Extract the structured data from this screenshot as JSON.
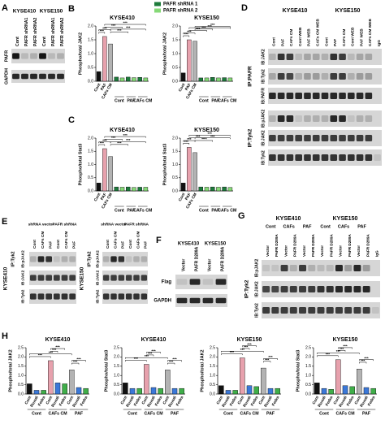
{
  "panel_labels": [
    "A",
    "B",
    "C",
    "D",
    "E",
    "F",
    "G",
    "H"
  ],
  "panel_b_legend": [
    {
      "name": "PAFR shRNA 1",
      "color": "#1e7b3c"
    },
    {
      "name": "PAFR shRNA 2",
      "color": "#86d977"
    }
  ],
  "chart_data": [
    {
      "type": "bar",
      "title": "KYSE410",
      "y_label": "Phospho/total JAK2",
      "categories": [
        "Cont",
        "PAF",
        "CAFs CM",
        null,
        null,
        null,
        null,
        null,
        null
      ],
      "groups": [
        "Cont",
        "PAF",
        "CAFs CM"
      ],
      "values": [
        0.35,
        1.62,
        1.35,
        0.15,
        0.12,
        0.15,
        0.13,
        0.14,
        0.12
      ],
      "colors": [
        "#111111",
        "#e7a1ad",
        "#b3b3b3",
        "#1e7b3c",
        "#86d977",
        "#1e7b3c",
        "#86d977",
        "#1e7b3c",
        "#86d977"
      ],
      "ylim": [
        0,
        2
      ],
      "yticks": [
        {
          "value": 0,
          "label": "0.0"
        },
        0.5,
        {
          "value": 1,
          "label": "1.0"
        },
        1.5,
        {
          "value": 2,
          "label": "2.0"
        }
      ],
      "significance": [
        "***",
        "***",
        "***",
        "***",
        "***",
        "***"
      ]
    },
    {
      "type": "bar",
      "title": "KYSE150",
      "y_label": "Phospho/total JAK2",
      "categories": [
        "Cont",
        "PAF",
        "CAFs CM",
        null,
        null,
        null,
        null,
        null,
        null
      ],
      "groups": [
        "Cont",
        "PAF",
        "CAFs CM"
      ],
      "values": [
        0.3,
        1.5,
        1.45,
        0.12,
        0.12,
        0.14,
        0.12,
        0.13,
        0.12
      ],
      "colors": [
        "#111111",
        "#e7a1ad",
        "#b3b3b3",
        "#1e7b3c",
        "#86d977",
        "#1e7b3c",
        "#86d977",
        "#1e7b3c",
        "#86d977"
      ],
      "ylim": [
        0,
        2
      ],
      "yticks": [
        {
          "value": 0,
          "label": "0.0"
        },
        0.5,
        {
          "value": 1,
          "label": "1.0"
        },
        1.5,
        {
          "value": 2,
          "label": "2.0"
        }
      ],
      "significance": [
        "***",
        "***",
        "***",
        "***",
        "***",
        "***"
      ]
    },
    {
      "type": "bar",
      "title": "KYSE410",
      "y_label": "Phospho/total Stat3",
      "categories": [
        "Cont",
        "PAF",
        "CAFs CM",
        null,
        null,
        null,
        null,
        null,
        null
      ],
      "groups": [
        "Cont",
        "PAF",
        "CAFs CM"
      ],
      "values": [
        0.3,
        1.6,
        1.3,
        0.15,
        0.14,
        0.15,
        0.13,
        0.14,
        0.14
      ],
      "colors": [
        "#111111",
        "#e7a1ad",
        "#b3b3b3",
        "#1e7b3c",
        "#86d977",
        "#1e7b3c",
        "#86d977",
        "#1e7b3c",
        "#86d977"
      ],
      "ylim": [
        0,
        2
      ],
      "yticks": [
        {
          "value": 0,
          "label": "0.0"
        },
        0.5,
        {
          "value": 1,
          "label": "1.0"
        },
        1.5,
        {
          "value": 2,
          "label": "2.0"
        }
      ],
      "significance": [
        "***",
        "***",
        "***",
        "***",
        "***",
        "***"
      ]
    },
    {
      "type": "bar",
      "title": "KYSE150",
      "y_label": "Phospho/total Stat3",
      "categories": [
        "Cont",
        "PAF",
        "CAFs CM",
        null,
        null,
        null,
        null,
        null,
        null
      ],
      "groups": [
        "Cont",
        "PAF",
        "CAFs CM"
      ],
      "values": [
        0.3,
        1.65,
        1.45,
        0.15,
        0.14,
        0.15,
        0.14,
        0.15,
        0.13
      ],
      "colors": [
        "#111111",
        "#e7a1ad",
        "#b3b3b3",
        "#1e7b3c",
        "#86d977",
        "#1e7b3c",
        "#86d977",
        "#1e7b3c",
        "#86d977"
      ],
      "ylim": [
        0,
        2
      ],
      "yticks": [
        {
          "value": 0,
          "label": "0.0"
        },
        0.5,
        {
          "value": 1,
          "label": "1.0"
        },
        1.5,
        {
          "value": 2,
          "label": "2.0"
        }
      ],
      "significance": [
        "***",
        "***",
        "***",
        "***",
        "***",
        "***"
      ]
    },
    {
      "type": "bar",
      "title": "KYSE410",
      "y_label": "Phospho/total JAK2",
      "categories": [
        "Cont",
        "Ruxoli",
        "Fedra",
        "Cont",
        "Ruxoli",
        "Fedra",
        "Cont",
        "Ruxoli",
        "Fedra"
      ],
      "groups": [
        "Cont",
        "CAFs CM",
        "PAF"
      ],
      "values": [
        0.55,
        0.2,
        0.2,
        1.8,
        0.6,
        0.55,
        1.3,
        0.35,
        0.3
      ],
      "colors": [
        "#111111",
        "#3b78d8",
        "#3fae49",
        "#e7a1ad",
        "#3b78d8",
        "#3fae49",
        "#b3b3b3",
        "#3b78d8",
        "#3fae49"
      ],
      "ylim": [
        0,
        2.5
      ],
      "yticks": [
        {
          "value": 0,
          "label": "0.0"
        },
        0.5,
        {
          "value": 1,
          "label": "1.0"
        },
        1.5,
        {
          "value": 2,
          "label": "2.0"
        },
        2.5
      ],
      "significance": [
        "***",
        "***",
        "***",
        "***",
        "***",
        "***"
      ]
    },
    {
      "type": "bar",
      "title": "KYSE410",
      "y_label": "Phospho/total Stat3",
      "categories": [
        "Cont",
        "Ruxoli",
        "Fedra",
        "Cont",
        "Ruxoli",
        "Fedra",
        "Cont",
        "Ruxoli",
        "Fedra"
      ],
      "groups": [
        "Cont",
        "CAFs CM",
        "PAF"
      ],
      "values": [
        0.6,
        0.3,
        0.3,
        1.6,
        0.35,
        0.3,
        1.3,
        0.3,
        0.3
      ],
      "colors": [
        "#111111",
        "#3b78d8",
        "#3fae49",
        "#e7a1ad",
        "#3b78d8",
        "#3fae49",
        "#b3b3b3",
        "#3b78d8",
        "#3fae49"
      ],
      "ylim": [
        0,
        2.5
      ],
      "yticks": [
        {
          "value": 0,
          "label": "0.0"
        },
        0.5,
        {
          "value": 1,
          "label": "1.0"
        },
        1.5,
        {
          "value": 2,
          "label": "2.0"
        },
        2.5
      ],
      "significance": [
        "***",
        "***",
        "***",
        "***",
        "***",
        "***"
      ]
    },
    {
      "type": "bar",
      "title": "KYSE150",
      "y_label": "Phospho/total JAK2",
      "categories": [
        "Cont",
        "Ruxoli",
        "Fedra",
        "Cont",
        "Ruxoli",
        "Fedra",
        "Cont",
        "Ruxoli",
        "Fedra"
      ],
      "groups": [
        "Cont",
        "CAFs CM",
        "PAF"
      ],
      "values": [
        0.45,
        0.2,
        0.2,
        1.95,
        0.45,
        0.4,
        1.4,
        0.3,
        0.3
      ],
      "colors": [
        "#111111",
        "#3b78d8",
        "#3fae49",
        "#e7a1ad",
        "#3b78d8",
        "#3fae49",
        "#b3b3b3",
        "#3b78d8",
        "#3fae49"
      ],
      "ylim": [
        0,
        2.5
      ],
      "yticks": [
        {
          "value": 0,
          "label": "0.0"
        },
        0.5,
        {
          "value": 1,
          "label": "1.0"
        },
        1.5,
        {
          "value": 2,
          "label": "2.0"
        },
        2.5
      ],
      "significance": [
        "***",
        "***",
        "***",
        "***",
        "***",
        "***"
      ]
    },
    {
      "type": "bar",
      "title": "KYSE150",
      "y_label": "Phospho/total Stat3",
      "categories": [
        "Cont",
        "Ruxoli",
        "Fedra",
        "Cont",
        "Ruxoli",
        "Fedra",
        "Cont",
        "Ruxoli",
        "Fedra"
      ],
      "groups": [
        "Cont",
        "CAFs CM",
        "PAF"
      ],
      "values": [
        0.6,
        0.3,
        0.25,
        1.85,
        0.45,
        0.4,
        1.35,
        0.35,
        0.3
      ],
      "colors": [
        "#111111",
        "#3b78d8",
        "#3fae49",
        "#e7a1ad",
        "#3b78d8",
        "#3fae49",
        "#b3b3b3",
        "#3b78d8",
        "#3fae49"
      ],
      "ylim": [
        0,
        2.5
      ],
      "yticks": [
        {
          "value": 0,
          "label": "0.0"
        },
        0.5,
        {
          "value": 1,
          "label": "1.0"
        },
        1.5,
        {
          "value": 2,
          "label": "2.0"
        },
        2.5
      ],
      "significance": [
        "***",
        "***",
        "***",
        "***",
        "***",
        "***"
      ]
    }
  ],
  "panel_a": {
    "cells": [
      "KYSE410",
      "KYSE150"
    ],
    "lanes": [
      "Cont",
      "PAFR shRNA1",
      "PAFR shRNA2",
      "Cont",
      "PAFR shRNA1",
      "PAFR shRNA2"
    ],
    "rows": [
      "PAFR",
      "GAPDH"
    ]
  },
  "panel_d": {
    "cells": [
      "KYSE410",
      "KYSE150"
    ],
    "lanes": [
      "Cont",
      "PAF",
      "CAFs CM",
      "Cont WEB",
      "PAF WEB",
      "CAFs CM WEB",
      "Cont",
      "PAF",
      "CAFs CM",
      "Cont WEB",
      "PAF WEB",
      "CAFs CM WEB",
      "IgG"
    ],
    "ip": [
      "IP:PAFR",
      "IP:Tyk2"
    ],
    "rows": [
      "IB:JAK2",
      "IB:Tyk2",
      "IB:PAFR",
      "IB:pJAK2",
      "IB:JAK2",
      "IB:Tyk2"
    ]
  },
  "panel_e": {
    "blots": [
      {
        "cell": "KYSE410",
        "ip": "IP:Tyk2",
        "headers": [
          "shRNA vector",
          "PAFR shRNA"
        ],
        "lanes": [
          "Cont",
          "CAFs CM",
          "PAF",
          "Cont",
          "CAFs CM",
          "PAF"
        ],
        "rows": [
          "IB:pJAK2",
          "IB:JAK2",
          "IB:Tyk2"
        ]
      },
      {
        "cell": "KYSE150",
        "ip": "IP:Tyk2",
        "headers": [
          "shRNA vector",
          "PAFR shRNA"
        ],
        "lanes": [
          "Cont",
          "CAFs CM",
          "PAF",
          "Cont",
          "CAFs CM",
          "PAF"
        ],
        "rows": [
          "IB:pJAK2",
          "IB:JAK2",
          "IB:Tyk2"
        ]
      }
    ]
  },
  "panel_f": {
    "cells": [
      "KYSE410",
      "KYSE150"
    ],
    "lanes": [
      "Vector",
      "PAFR D289A",
      "Vector",
      "PAFR D289A"
    ],
    "rows": [
      "Flag",
      "GAPDH"
    ]
  },
  "panel_g": {
    "cells": [
      "KYSE410",
      "KYSE150"
    ],
    "treatments": [
      "Cont",
      "CAFs",
      "PAF",
      "Cont",
      "CAFs",
      "PAF"
    ],
    "lanes": [
      "Vector",
      "PAFR D289A",
      "Vector",
      "PAFR D289A",
      "Vector",
      "PAFR D289A",
      "Vector",
      "PAFR D289A",
      "Vector",
      "PAFR D289A",
      "Vector",
      "PAFR D289A",
      "IgG"
    ],
    "ip": "IP:Tyk2",
    "rows": [
      "IB:pJAK2",
      "IB:JAK2",
      "IB:Tyk2"
    ]
  }
}
